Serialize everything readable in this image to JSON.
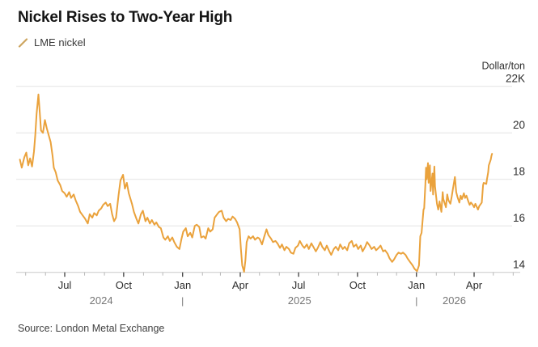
{
  "title": "Nickel Rises to Two-Year High",
  "legend": {
    "label": "LME nickel",
    "marker_color": "#CDA55F"
  },
  "source": "Source: London Metal Exchange",
  "chart_data": {
    "type": "line",
    "title": "Nickel Rises to Two-Year High",
    "series_name": "LME nickel",
    "unit_label": "Dollar/ton",
    "line_color": "#EAA23C",
    "grid_color": "#e4e4e4",
    "axis_line_color": "#c9c9c9",
    "major_tick_color": "#3f3f3f",
    "minor_tick_color": "#b8b8b8",
    "tick_label_color": "#2d2d2d",
    "year_label_color": "#767676",
    "legend_position": "top-left",
    "grid": "horizontal-only",
    "y_axis": {
      "side": "right",
      "unit": "thousand dollars per ton",
      "tick_values": [
        22,
        20,
        18,
        16,
        14
      ],
      "tick_labels": [
        "22K",
        "20",
        "18",
        "16",
        "14"
      ],
      "range": [
        13.8,
        22.4
      ]
    },
    "x_axis": {
      "range": [
        "2024-04-22",
        "2026-06-01"
      ],
      "major_month_labels": {
        "1": "Jan",
        "4": "Apr",
        "7": "Jul",
        "10": "Oct"
      },
      "years": [
        "2024",
        "2025",
        "2026"
      ],
      "year_separator": "|",
      "year_boundaries": [
        "2025-01-01",
        "2026-01-01"
      ]
    },
    "points": [
      [
        "2024-04-22",
        18.85
      ],
      [
        "2024-04-25",
        18.5
      ],
      [
        "2024-04-29",
        18.95
      ],
      [
        "2024-05-02",
        19.15
      ],
      [
        "2024-05-05",
        18.6
      ],
      [
        "2024-05-08",
        18.9
      ],
      [
        "2024-05-11",
        18.55
      ],
      [
        "2024-05-14",
        19.2
      ],
      [
        "2024-05-16",
        19.9
      ],
      [
        "2024-05-18",
        20.8
      ],
      [
        "2024-05-21",
        21.65
      ],
      [
        "2024-05-23",
        20.9
      ],
      [
        "2024-05-25",
        20.1
      ],
      [
        "2024-05-28",
        20.0
      ],
      [
        "2024-05-31",
        20.55
      ],
      [
        "2024-06-03",
        20.2
      ],
      [
        "2024-06-06",
        19.9
      ],
      [
        "2024-06-09",
        19.6
      ],
      [
        "2024-06-12",
        19.0
      ],
      [
        "2024-06-14",
        18.5
      ],
      [
        "2024-06-17",
        18.3
      ],
      [
        "2024-06-20",
        17.95
      ],
      [
        "2024-06-24",
        17.75
      ],
      [
        "2024-06-27",
        17.5
      ],
      [
        "2024-07-01",
        17.4
      ],
      [
        "2024-07-04",
        17.25
      ],
      [
        "2024-07-08",
        17.45
      ],
      [
        "2024-07-11",
        17.2
      ],
      [
        "2024-07-15",
        17.35
      ],
      [
        "2024-07-18",
        17.1
      ],
      [
        "2024-07-22",
        16.85
      ],
      [
        "2024-07-25",
        16.6
      ],
      [
        "2024-07-29",
        16.45
      ],
      [
        "2024-08-02",
        16.3
      ],
      [
        "2024-08-06",
        16.1
      ],
      [
        "2024-08-09",
        16.5
      ],
      [
        "2024-08-13",
        16.35
      ],
      [
        "2024-08-16",
        16.55
      ],
      [
        "2024-08-20",
        16.45
      ],
      [
        "2024-08-23",
        16.65
      ],
      [
        "2024-08-27",
        16.75
      ],
      [
        "2024-08-30",
        16.9
      ],
      [
        "2024-09-03",
        17.0
      ],
      [
        "2024-09-06",
        16.85
      ],
      [
        "2024-09-10",
        16.95
      ],
      [
        "2024-09-13",
        16.5
      ],
      [
        "2024-09-16",
        16.2
      ],
      [
        "2024-09-19",
        16.35
      ],
      [
        "2024-09-23",
        17.3
      ],
      [
        "2024-09-26",
        17.95
      ],
      [
        "2024-09-30",
        18.2
      ],
      [
        "2024-10-03",
        17.6
      ],
      [
        "2024-10-06",
        17.85
      ],
      [
        "2024-10-09",
        17.4
      ],
      [
        "2024-10-14",
        16.95
      ],
      [
        "2024-10-17",
        16.6
      ],
      [
        "2024-10-21",
        16.3
      ],
      [
        "2024-10-24",
        16.1
      ],
      [
        "2024-10-28",
        16.5
      ],
      [
        "2024-10-31",
        16.65
      ],
      [
        "2024-11-04",
        16.2
      ],
      [
        "2024-11-07",
        16.35
      ],
      [
        "2024-11-11",
        16.1
      ],
      [
        "2024-11-14",
        16.25
      ],
      [
        "2024-11-18",
        16.05
      ],
      [
        "2024-11-21",
        16.15
      ],
      [
        "2024-11-25",
        15.95
      ],
      [
        "2024-11-28",
        15.9
      ],
      [
        "2024-12-02",
        15.5
      ],
      [
        "2024-12-05",
        15.4
      ],
      [
        "2024-12-09",
        15.55
      ],
      [
        "2024-12-12",
        15.35
      ],
      [
        "2024-12-16",
        15.5
      ],
      [
        "2024-12-19",
        15.3
      ],
      [
        "2024-12-23",
        15.1
      ],
      [
        "2024-12-27",
        15.0
      ],
      [
        "2024-12-30",
        15.4
      ],
      [
        "2025-01-02",
        15.75
      ],
      [
        "2025-01-06",
        15.9
      ],
      [
        "2025-01-09",
        15.55
      ],
      [
        "2025-01-13",
        15.7
      ],
      [
        "2025-01-16",
        15.5
      ],
      [
        "2025-01-20",
        16.0
      ],
      [
        "2025-01-23",
        16.05
      ],
      [
        "2025-01-27",
        15.95
      ],
      [
        "2025-01-30",
        15.5
      ],
      [
        "2025-02-03",
        15.55
      ],
      [
        "2025-02-06",
        15.45
      ],
      [
        "2025-02-10",
        15.9
      ],
      [
        "2025-02-13",
        15.75
      ],
      [
        "2025-02-17",
        15.85
      ],
      [
        "2025-02-20",
        16.35
      ],
      [
        "2025-02-24",
        16.5
      ],
      [
        "2025-02-27",
        16.6
      ],
      [
        "2025-03-03",
        16.65
      ],
      [
        "2025-03-06",
        16.35
      ],
      [
        "2025-03-10",
        16.2
      ],
      [
        "2025-03-13",
        16.3
      ],
      [
        "2025-03-17",
        16.25
      ],
      [
        "2025-03-20",
        16.4
      ],
      [
        "2025-03-24",
        16.3
      ],
      [
        "2025-03-27",
        16.15
      ],
      [
        "2025-03-31",
        15.85
      ],
      [
        "2025-04-02",
        15.0
      ],
      [
        "2025-04-04",
        14.3
      ],
      [
        "2025-04-07",
        14.02
      ],
      [
        "2025-04-09",
        14.5
      ],
      [
        "2025-04-11",
        15.3
      ],
      [
        "2025-04-14",
        15.55
      ],
      [
        "2025-04-17",
        15.45
      ],
      [
        "2025-04-21",
        15.55
      ],
      [
        "2025-04-24",
        15.4
      ],
      [
        "2025-04-28",
        15.5
      ],
      [
        "2025-05-01",
        15.45
      ],
      [
        "2025-05-05",
        15.2
      ],
      [
        "2025-05-08",
        15.5
      ],
      [
        "2025-05-12",
        15.85
      ],
      [
        "2025-05-15",
        15.6
      ],
      [
        "2025-05-19",
        15.45
      ],
      [
        "2025-05-22",
        15.3
      ],
      [
        "2025-05-26",
        15.35
      ],
      [
        "2025-05-29",
        15.25
      ],
      [
        "2025-06-02",
        15.05
      ],
      [
        "2025-06-05",
        15.2
      ],
      [
        "2025-06-09",
        14.95
      ],
      [
        "2025-06-12",
        15.1
      ],
      [
        "2025-06-16",
        15.0
      ],
      [
        "2025-06-19",
        14.85
      ],
      [
        "2025-06-23",
        14.8
      ],
      [
        "2025-06-26",
        15.05
      ],
      [
        "2025-06-30",
        15.15
      ],
      [
        "2025-07-03",
        15.35
      ],
      [
        "2025-07-07",
        15.15
      ],
      [
        "2025-07-10",
        15.05
      ],
      [
        "2025-07-14",
        15.2
      ],
      [
        "2025-07-17",
        15.0
      ],
      [
        "2025-07-21",
        15.25
      ],
      [
        "2025-07-24",
        15.1
      ],
      [
        "2025-07-28",
        14.9
      ],
      [
        "2025-07-31",
        15.05
      ],
      [
        "2025-08-04",
        15.3
      ],
      [
        "2025-08-07",
        15.1
      ],
      [
        "2025-08-11",
        14.95
      ],
      [
        "2025-08-14",
        15.15
      ],
      [
        "2025-08-18",
        14.9
      ],
      [
        "2025-08-21",
        14.75
      ],
      [
        "2025-08-25",
        15.0
      ],
      [
        "2025-08-28",
        15.1
      ],
      [
        "2025-09-01",
        14.95
      ],
      [
        "2025-09-04",
        15.2
      ],
      [
        "2025-09-08",
        15.0
      ],
      [
        "2025-09-11",
        15.1
      ],
      [
        "2025-09-15",
        14.95
      ],
      [
        "2025-09-18",
        15.25
      ],
      [
        "2025-09-22",
        15.35
      ],
      [
        "2025-09-25",
        15.1
      ],
      [
        "2025-09-29",
        15.2
      ],
      [
        "2025-10-02",
        15.0
      ],
      [
        "2025-10-06",
        15.15
      ],
      [
        "2025-10-09",
        14.9
      ],
      [
        "2025-10-13",
        15.1
      ],
      [
        "2025-10-16",
        15.3
      ],
      [
        "2025-10-20",
        15.15
      ],
      [
        "2025-10-23",
        15.0
      ],
      [
        "2025-10-27",
        15.1
      ],
      [
        "2025-10-30",
        14.95
      ],
      [
        "2025-11-03",
        15.05
      ],
      [
        "2025-11-06",
        15.15
      ],
      [
        "2025-11-10",
        14.9
      ],
      [
        "2025-11-13",
        14.95
      ],
      [
        "2025-11-17",
        14.8
      ],
      [
        "2025-11-20",
        14.6
      ],
      [
        "2025-11-24",
        14.45
      ],
      [
        "2025-11-27",
        14.55
      ],
      [
        "2025-12-01",
        14.75
      ],
      [
        "2025-12-04",
        14.85
      ],
      [
        "2025-12-08",
        14.8
      ],
      [
        "2025-12-11",
        14.85
      ],
      [
        "2025-12-15",
        14.75
      ],
      [
        "2025-12-18",
        14.6
      ],
      [
        "2025-12-22",
        14.45
      ],
      [
        "2025-12-26",
        14.3
      ],
      [
        "2025-12-29",
        14.15
      ],
      [
        "2026-01-02",
        14.05
      ],
      [
        "2026-01-05",
        14.3
      ],
      [
        "2026-01-07",
        15.55
      ],
      [
        "2026-01-09",
        15.7
      ],
      [
        "2026-01-12",
        16.7
      ],
      [
        "2026-01-13",
        16.75
      ],
      [
        "2026-01-15",
        17.8
      ],
      [
        "2026-01-16",
        18.5
      ],
      [
        "2026-01-17",
        18.0
      ],
      [
        "2026-01-19",
        18.7
      ],
      [
        "2026-01-20",
        17.85
      ],
      [
        "2026-01-22",
        18.6
      ],
      [
        "2026-01-23",
        17.5
      ],
      [
        "2026-01-26",
        18.25
      ],
      [
        "2026-01-27",
        17.35
      ],
      [
        "2026-01-29",
        18.55
      ],
      [
        "2026-01-30",
        17.7
      ],
      [
        "2026-02-02",
        16.95
      ],
      [
        "2026-02-04",
        16.7
      ],
      [
        "2026-02-06",
        17.05
      ],
      [
        "2026-02-09",
        16.6
      ],
      [
        "2026-02-11",
        17.45
      ],
      [
        "2026-02-12",
        17.15
      ],
      [
        "2026-02-16",
        16.8
      ],
      [
        "2026-02-18",
        17.35
      ],
      [
        "2026-02-20",
        17.1
      ],
      [
        "2026-02-23",
        16.95
      ],
      [
        "2026-02-25",
        17.25
      ],
      [
        "2026-02-27",
        17.6
      ],
      [
        "2026-03-02",
        18.1
      ],
      [
        "2026-03-04",
        17.45
      ],
      [
        "2026-03-06",
        17.25
      ],
      [
        "2026-03-09",
        17.0
      ],
      [
        "2026-03-11",
        17.3
      ],
      [
        "2026-03-13",
        17.15
      ],
      [
        "2026-03-16",
        17.4
      ],
      [
        "2026-03-18",
        17.2
      ],
      [
        "2026-03-20",
        17.3
      ],
      [
        "2026-03-23",
        17.05
      ],
      [
        "2026-03-25",
        16.9
      ],
      [
        "2026-03-27",
        17.0
      ],
      [
        "2026-03-30",
        16.9
      ],
      [
        "2026-04-01",
        16.8
      ],
      [
        "2026-04-03",
        16.95
      ],
      [
        "2026-04-07",
        16.7
      ],
      [
        "2026-04-09",
        16.85
      ],
      [
        "2026-04-13",
        17.0
      ],
      [
        "2026-04-15",
        17.75
      ],
      [
        "2026-04-16",
        17.85
      ],
      [
        "2026-04-20",
        17.8
      ],
      [
        "2026-04-21",
        18.0
      ],
      [
        "2026-04-23",
        18.3
      ],
      [
        "2026-04-24",
        18.6
      ],
      [
        "2026-04-27",
        18.85
      ],
      [
        "2026-04-28",
        19.0
      ],
      [
        "2026-04-29",
        19.1
      ]
    ]
  }
}
